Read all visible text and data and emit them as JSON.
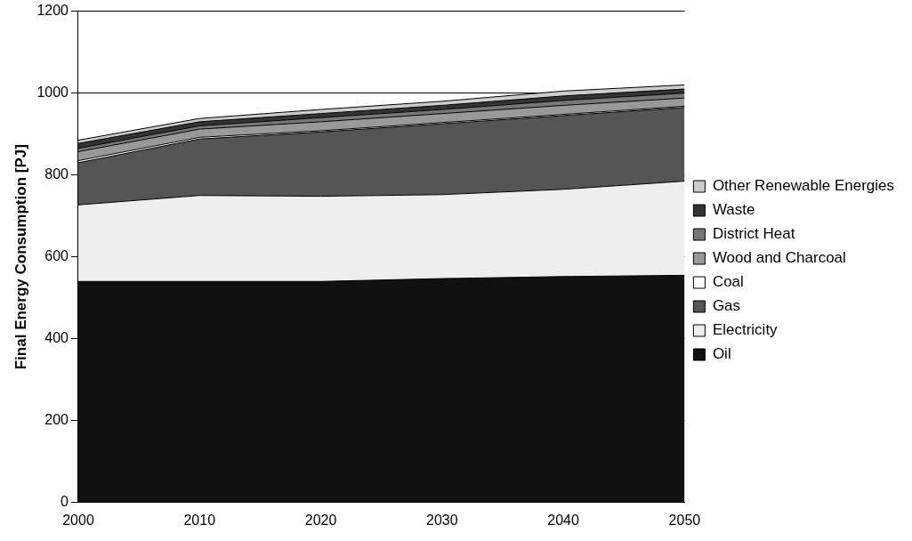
{
  "chart_data": {
    "type": "area",
    "stacked": true,
    "ylabel": "Final Energy Consumption [PJ]",
    "x": [
      2000,
      2010,
      2020,
      2030,
      2040,
      2050
    ],
    "xlim": [
      2000,
      2050
    ],
    "xticks": [
      2000,
      2010,
      2020,
      2030,
      2040,
      2050
    ],
    "ylim": [
      0,
      1200
    ],
    "yticks": [
      0,
      200,
      400,
      600,
      800,
      1000,
      1200
    ],
    "grid": "y",
    "legend": "right",
    "series": [
      {
        "name": "Oil",
        "color": "#111111",
        "values": [
          540,
          540,
          540,
          547,
          552,
          555
        ]
      },
      {
        "name": "Electricity",
        "color": "#eeeeee",
        "values": [
          187,
          210,
          208,
          205,
          213,
          230
        ]
      },
      {
        "name": "Gas",
        "color": "#555555",
        "values": [
          103,
          138,
          157,
          173,
          180,
          180
        ]
      },
      {
        "name": "Coal",
        "color": "#ffffff",
        "values": [
          5,
          4,
          3,
          3,
          3,
          3
        ]
      },
      {
        "name": "Wood and Charcoal",
        "color": "#999999",
        "values": [
          22,
          20,
          22,
          22,
          22,
          20
        ]
      },
      {
        "name": "District Heat",
        "color": "#777777",
        "values": [
          8,
          8,
          10,
          10,
          12,
          12
        ]
      },
      {
        "name": "Waste",
        "color": "#333333",
        "values": [
          12,
          10,
          10,
          10,
          11,
          10
        ]
      },
      {
        "name": "Other Renewable Energies",
        "color": "#cccccc",
        "values": [
          8,
          8,
          10,
          10,
          12,
          10
        ]
      }
    ]
  }
}
